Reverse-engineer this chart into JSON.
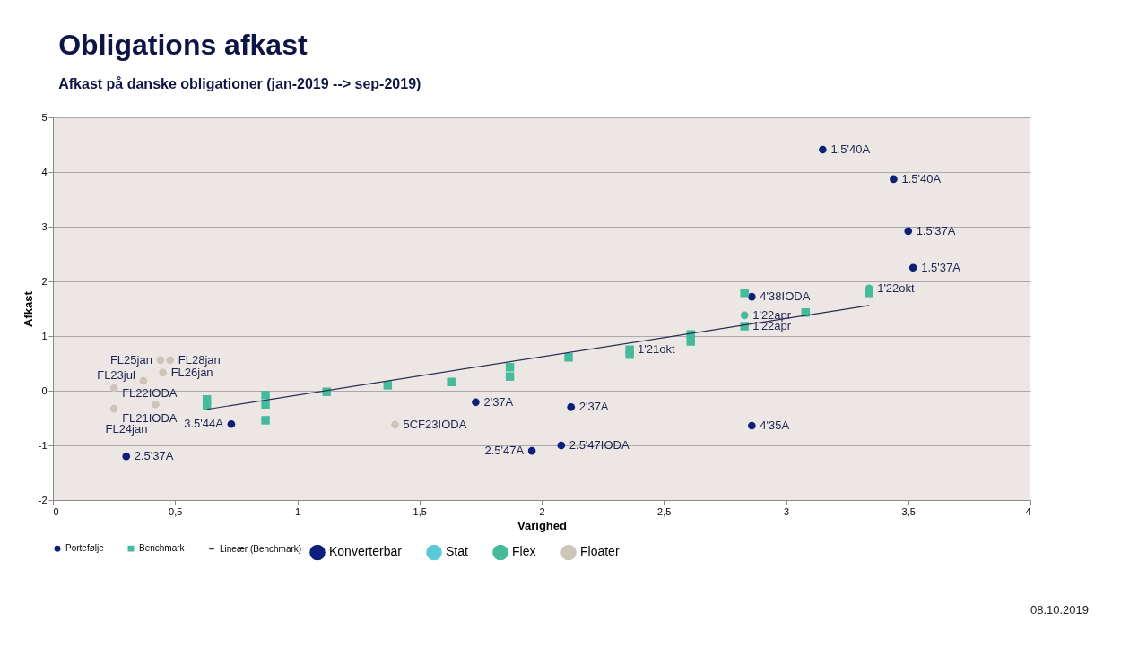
{
  "chart_data": {
    "type": "scatter",
    "title": "Obligations afkast",
    "subtitle": "Afkast på danske obligationer (jan-2019 --> sep-2019)",
    "xlabel": "Varighed",
    "ylabel": "Afkast",
    "xlim": [
      0,
      4
    ],
    "ylim": [
      -2,
      5
    ],
    "xticks": [
      0,
      {
        "value": 0.5,
        "label": "0,5"
      },
      1,
      {
        "value": 1.5,
        "label": "1,5"
      },
      2,
      {
        "value": 2.5,
        "label": "2,5"
      },
      3,
      {
        "value": 3.5,
        "label": "3,5"
      },
      4
    ],
    "yticks": [
      -2,
      -1,
      0,
      1,
      2,
      3,
      4,
      5
    ],
    "grid": "y",
    "legend": "bottom",
    "series": [
      {
        "name": "Portefølje",
        "color": "#0d1f7a",
        "marker": "circle",
        "x": [
          3.15,
          3.44,
          3.5,
          3.52,
          2.86,
          2.86,
          1.73,
          2.12,
          2.08,
          1.96,
          0.73,
          0.3,
          1.4,
          0.25,
          0.25,
          0.37,
          0.45,
          0.44,
          0.48,
          0.42,
          2.83,
          3.34
        ],
        "values": [
          4.41,
          3.87,
          2.92,
          2.25,
          1.72,
          -0.64,
          -0.21,
          -0.3,
          -1.0,
          -1.1,
          -0.61,
          -1.2,
          -0.62,
          -0.33,
          0.05,
          0.18,
          0.33,
          0.56,
          0.56,
          -0.25,
          1.38,
          1.87
        ],
        "colors": [
          "#0d1f7a",
          "#0d1f7a",
          "#0d1f7a",
          "#0d1f7a",
          "#0d1f7a",
          "#0d1f7a",
          "#0d1f7a",
          "#0d1f7a",
          "#0d1f7a",
          "#0d1f7a",
          "#0d1f7a",
          "#0d1f7a",
          "#cdc5b8",
          "#cdc5b8",
          "#cdc5b8",
          "#cdc5b8",
          "#cdc5b8",
          "#cdc5b8",
          "#cdc5b8",
          "#cdc5b8",
          "#45bb9b",
          "#45bb9b"
        ],
        "value_labels": [
          "1.5'40A",
          "1.5'40A",
          "1.5'37A",
          "1.5'37A",
          "4'38IODA",
          "4'35A",
          "2'37A",
          "2'37A",
          "2.5'47IODA",
          "2.5'47A",
          "3.5'44A",
          "2.5'37A",
          "5CF23IODA",
          "FL21IODA",
          "FL22IODA",
          "FL23jul",
          "FL26jan",
          "FL25jan",
          "FL28jan",
          "FL24jan",
          "1'22apr",
          "1'22okt"
        ]
      },
      {
        "name": "Benchmark",
        "color": "#45bb9b",
        "marker": "square",
        "x": [
          0.63,
          0.63,
          0.87,
          0.87,
          0.87,
          1.12,
          1.37,
          1.63,
          1.87,
          1.87,
          2.11,
          2.36,
          2.36,
          2.61,
          2.61,
          2.83,
          2.83,
          3.08,
          3.34
        ],
        "values": [
          -0.16,
          -0.28,
          -0.08,
          -0.25,
          -0.54,
          -0.02,
          0.1,
          0.16,
          0.43,
          0.26,
          0.61,
          0.75,
          0.66,
          1.03,
          0.9,
          1.79,
          1.18,
          1.43,
          1.79
        ],
        "colors": [
          "#45bb9b",
          "#45bb9b",
          "#45bb9b",
          "#45bb9b",
          "#45bb9b",
          "#45bb9b",
          "#45bb9b",
          "#45bb9b",
          "#45bb9b",
          "#45bb9b",
          "#45bb9b",
          "#45bb9b",
          "#45bb9b",
          "#45bb9b",
          "#45bb9b",
          "#45bb9b",
          "#45bb9b",
          "#45bb9b",
          "#45bb9b"
        ],
        "value_labels": [
          null,
          null,
          null,
          null,
          null,
          null,
          null,
          null,
          null,
          null,
          null,
          "1'21okt",
          null,
          null,
          null,
          null,
          "1'22apr",
          null,
          null
        ]
      },
      {
        "name": "Lineær (Benchmark)",
        "type": "line",
        "color": "#2b2d4f",
        "line_style": "solid",
        "x": [
          0.63,
          3.34
        ],
        "values": [
          -0.34,
          1.56
        ]
      },
      {
        "name": "Konverterbar",
        "color": "#0d1f7a"
      },
      {
        "name": "Stat",
        "color": "#5bc8d8"
      },
      {
        "name": "Flex",
        "color": "#45bb9b"
      },
      {
        "name": "Floater",
        "color": "#cdc5b8"
      }
    ],
    "annotations": [
      "08.10.2019"
    ]
  }
}
